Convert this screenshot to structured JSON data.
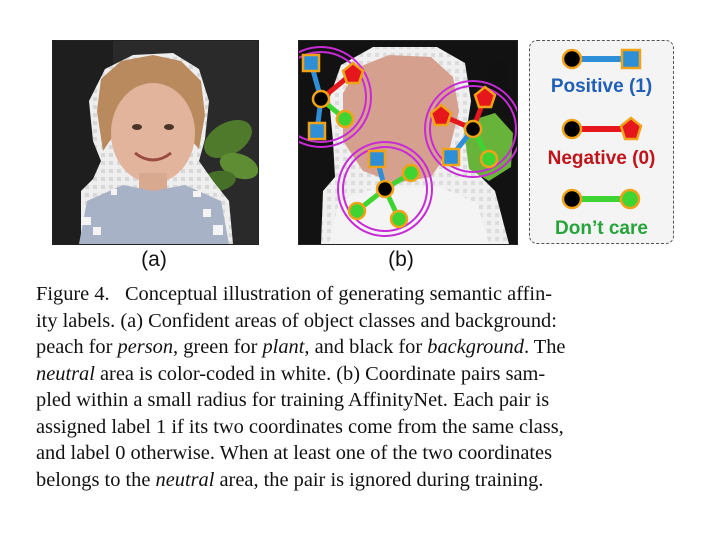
{
  "figure": {
    "panel_a": {
      "label": "(a)"
    },
    "panel_b": {
      "label": "(b)"
    },
    "legend": {
      "positive": {
        "label": "Positive (1)",
        "color": "#1f5fb8"
      },
      "negative": {
        "label": "Negative (0)",
        "color": "#c0141a"
      },
      "dont_care": {
        "label": "Don’t care",
        "color": "#27a33b"
      }
    },
    "colors": {
      "person_peach": "#d9a08e",
      "plant_green": "#6bbf3e",
      "background_black": "#1b1b1b",
      "neutral_white": "#f2f2f2",
      "square_blue": "#2f8fd6",
      "pentagon_red": "#e5171c",
      "circle_green": "#3fd432",
      "marker_outline": "#f0a318",
      "ring_magenta": "#c72bd6"
    }
  },
  "caption": {
    "figure_number": "Figure 4.",
    "lines": [
      "Conceptual illustration of generating semantic affin-",
      "ity labels. (a) Confident areas of object classes and background:",
      "peach for ",
      "person",
      ", green for ",
      "plant",
      ", and black for ",
      "background",
      ". The",
      "neutral",
      " area is color-coded in white. (b) Coordinate pairs sam-",
      "pled within a small radius for training AffinityNet. Each pair is",
      "assigned label 1 if its two coordinates come from the same class,",
      "and label 0 otherwise. When at least one of the two coordinates",
      "belongs to the ",
      "neutral",
      " area, the pair is ignored during training."
    ]
  }
}
